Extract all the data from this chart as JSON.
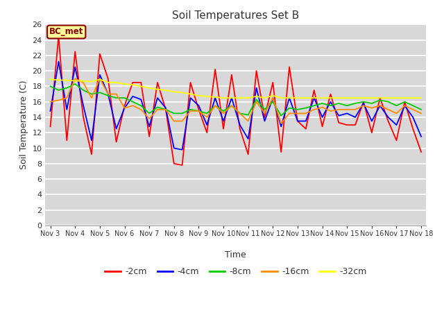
{
  "title": "Soil Temperatures Set B",
  "xlabel": "Time",
  "ylabel": "Soil Temperature (C)",
  "ylim": [
    0,
    26
  ],
  "yticks": [
    0,
    2,
    4,
    6,
    8,
    10,
    12,
    14,
    16,
    18,
    20,
    22,
    24,
    26
  ],
  "x_labels": [
    "Nov 3",
    "Nov 4",
    "Nov 5",
    "Nov 6",
    "Nov 7",
    "Nov 8",
    "Nov 9",
    "Nov 10",
    "Nov 11",
    "Nov 12",
    "Nov 13",
    "Nov 14",
    "Nov 15",
    "Nov 16",
    "Nov 17",
    "Nov 18"
  ],
  "annotation_text": "BC_met",
  "annotation_color": "#8B0000",
  "annotation_bg": "#FFFF99",
  "fig_bg": "#FFFFFF",
  "plot_bg": "#D8D8D8",
  "grid_color": "#FFFFFF",
  "series_order": [
    "-2cm",
    "-4cm",
    "-8cm",
    "-16cm",
    "-32cm"
  ],
  "series": {
    "-2cm": {
      "color": "#FF0000",
      "data": [
        12.8,
        24.5,
        11.0,
        22.5,
        14.0,
        9.2,
        22.2,
        19.0,
        10.8,
        15.5,
        18.5,
        18.5,
        11.5,
        18.5,
        15.0,
        8.0,
        7.8,
        18.5,
        15.0,
        12.0,
        20.2,
        12.5,
        19.5,
        12.5,
        9.2,
        20.0,
        14.0,
        18.5,
        9.5,
        20.5,
        13.5,
        12.5,
        17.5,
        12.8,
        17.0,
        13.3,
        13.0,
        13.0,
        16.0,
        12.0,
        16.5,
        13.5,
        11.0,
        16.0,
        12.5,
        9.5
      ]
    },
    "-4cm": {
      "color": "#0000FF",
      "data": [
        14.8,
        21.2,
        15.0,
        20.5,
        15.5,
        11.0,
        19.5,
        17.0,
        12.5,
        15.2,
        16.7,
        16.3,
        12.8,
        16.5,
        15.2,
        10.0,
        9.8,
        16.5,
        15.5,
        13.0,
        16.5,
        13.5,
        16.5,
        13.0,
        11.2,
        17.8,
        13.5,
        16.5,
        12.8,
        16.5,
        13.5,
        13.5,
        16.5,
        14.0,
        16.0,
        14.2,
        14.5,
        14.0,
        15.8,
        13.5,
        15.5,
        14.0,
        13.0,
        15.5,
        14.0,
        11.5
      ]
    },
    "-8cm": {
      "color": "#00CC00",
      "data": [
        18.0,
        17.5,
        17.8,
        18.3,
        17.5,
        17.0,
        17.2,
        16.8,
        16.5,
        16.5,
        16.0,
        15.5,
        14.5,
        15.3,
        15.0,
        14.5,
        14.5,
        15.0,
        14.8,
        14.5,
        15.5,
        14.8,
        15.5,
        14.5,
        14.3,
        16.3,
        15.0,
        16.0,
        14.2,
        15.2,
        15.0,
        15.2,
        15.5,
        15.8,
        15.5,
        15.8,
        15.5,
        15.8,
        16.0,
        15.8,
        16.2,
        16.0,
        15.5,
        16.0,
        15.5,
        15.0
      ]
    },
    "-16cm": {
      "color": "#FF8C00",
      "data": [
        16.0,
        16.2,
        16.5,
        19.0,
        18.5,
        16.5,
        19.0,
        17.0,
        17.0,
        15.2,
        15.5,
        15.0,
        13.8,
        15.0,
        15.0,
        13.5,
        13.5,
        14.8,
        14.8,
        14.0,
        15.5,
        14.5,
        15.5,
        14.5,
        13.5,
        16.0,
        14.5,
        16.5,
        13.2,
        14.5,
        14.5,
        14.5,
        15.0,
        15.3,
        14.8,
        15.0,
        15.0,
        15.0,
        15.5,
        15.2,
        15.5,
        15.0,
        14.5,
        15.5,
        15.0,
        14.5
      ]
    },
    "-32cm": {
      "color": "#FFFF00",
      "data": [
        18.9,
        18.8,
        18.8,
        18.7,
        18.7,
        18.6,
        18.9,
        18.5,
        18.5,
        18.3,
        18.2,
        18.0,
        17.8,
        17.6,
        17.5,
        17.3,
        17.2,
        17.0,
        16.8,
        16.7,
        16.6,
        16.5,
        16.5,
        16.5,
        16.5,
        16.7,
        16.5,
        16.8,
        16.5,
        16.5,
        16.5,
        16.5,
        16.5,
        16.5,
        16.5,
        16.5,
        16.5,
        16.5,
        16.5,
        16.5,
        16.5,
        16.5,
        16.5,
        16.5,
        16.5,
        16.5
      ]
    }
  },
  "legend_entries": [
    "-2cm",
    "-4cm",
    "-8cm",
    "-16cm",
    "-32cm"
  ],
  "legend_colors": [
    "#FF0000",
    "#0000FF",
    "#00CC00",
    "#FF8C00",
    "#FFFF00"
  ]
}
